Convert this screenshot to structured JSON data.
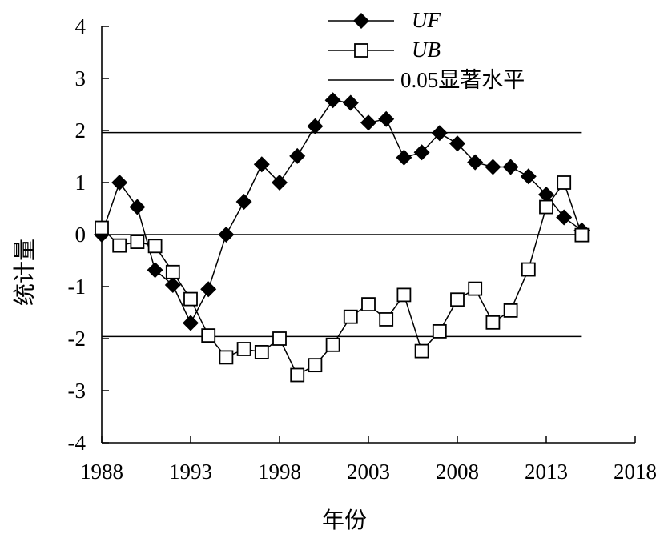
{
  "chart_data": {
    "type": "line",
    "title": "",
    "xlabel": "年份",
    "ylabel": "统计量",
    "xlim": [
      1988,
      2018
    ],
    "ylim": [
      -4,
      4
    ],
    "x_ticks": [
      1988,
      1993,
      1998,
      2003,
      2008,
      2013,
      2018
    ],
    "y_ticks": [
      4,
      3,
      2,
      1,
      0,
      -1,
      -2,
      -3,
      -4
    ],
    "grid": false,
    "legend_position": "top-center",
    "x": [
      1988,
      1989,
      1990,
      1991,
      1992,
      1993,
      1994,
      1995,
      1996,
      1997,
      1998,
      1999,
      2000,
      2001,
      2002,
      2003,
      2004,
      2005,
      2006,
      2007,
      2008,
      2009,
      2010,
      2011,
      2012,
      2013,
      2014,
      2015
    ],
    "series": [
      {
        "name": "UF",
        "marker": "filled-diamond",
        "color": "#000000",
        "values": [
          0,
          1.0,
          0.53,
          -0.68,
          -0.97,
          -1.7,
          -1.05,
          0,
          0.63,
          1.35,
          1.0,
          1.51,
          2.08,
          2.58,
          2.53,
          2.15,
          2.22,
          1.48,
          1.58,
          1.95,
          1.75,
          1.39,
          1.3,
          1.3,
          1.12,
          0.77,
          0.33,
          0.08
        ]
      },
      {
        "name": "UB",
        "marker": "hollow-square",
        "color": "#000000",
        "values": [
          0.13,
          -0.21,
          -0.14,
          -0.22,
          -0.72,
          -1.24,
          -1.94,
          -2.36,
          -2.2,
          -2.26,
          -2.0,
          -2.7,
          -2.51,
          -2.12,
          -1.58,
          -1.34,
          -1.63,
          -1.16,
          -2.24,
          -1.86,
          -1.25,
          -1.04,
          -1.69,
          -1.46,
          -0.67,
          0.53,
          1.0,
          -0.01
        ]
      }
    ],
    "reference_lines": [
      {
        "name": "0.05显著水平",
        "values": [
          1.96,
          -1.96
        ],
        "x_range": [
          1988,
          2015
        ]
      },
      {
        "name": "",
        "values": [
          0
        ],
        "x_range": [
          1988,
          2015
        ]
      }
    ]
  }
}
